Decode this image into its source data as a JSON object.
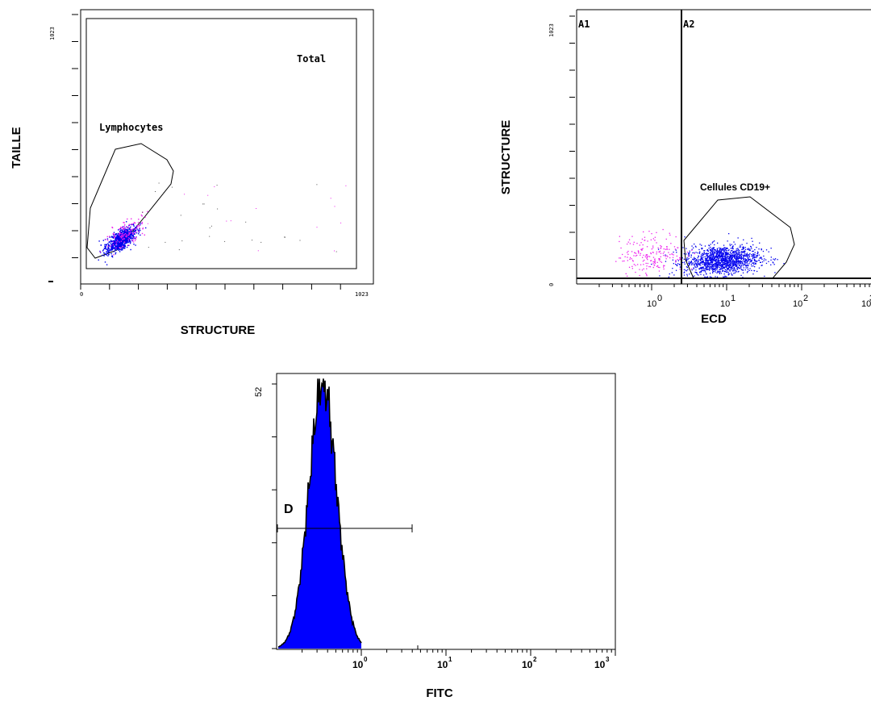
{
  "colors": {
    "gated_blue": "#0000ee",
    "ungated_magenta": "#ee22ee",
    "histogram_fill": "#0000ff",
    "axis_black": "#000000"
  },
  "chart_data": [
    {
      "type": "scatter",
      "id": "plot1",
      "xlabel": "STRUCTURE",
      "ylabel": "TAILLE",
      "x_ticks": [
        "0",
        "1023"
      ],
      "y_ticks": [
        "1023"
      ],
      "xlim": [
        0,
        1023
      ],
      "ylim": [
        0,
        1023
      ],
      "gates": [
        {
          "name": "Total",
          "kind": "rectangle"
        },
        {
          "name": "Lymphocytes",
          "kind": "polygon"
        }
      ],
      "clusters": [
        {
          "name": "Lymphocytes (blue)",
          "center": [
            130,
            120
          ],
          "spread": [
            45,
            40
          ],
          "count": 800,
          "color": "#0000ee"
        },
        {
          "name": "Lymphocytes (magenta)",
          "center": [
            150,
            145
          ],
          "spread": [
            60,
            60
          ],
          "count": 120,
          "color": "#ee22ee"
        }
      ],
      "grid": false
    },
    {
      "type": "scatter",
      "id": "plot2",
      "xlabel": "ECD",
      "ylabel": "STRUCTURE",
      "x_scale": "log",
      "x_ticks": [
        "10^0",
        "10^1",
        "10^2",
        "10^3"
      ],
      "y_ticks": [
        "1023",
        "0"
      ],
      "xlim": [
        0.1,
        1000
      ],
      "ylim": [
        0,
        1023
      ],
      "quadrant_threshold": 2.5,
      "regions": [
        "A1",
        "A2"
      ],
      "gates": [
        {
          "name": "Cellules CD19+",
          "kind": "polygon"
        }
      ],
      "clusters": [
        {
          "name": "CD19+ (blue)",
          "center_log": 0.93,
          "center_y": 70,
          "spread": [
            0.25,
            28
          ],
          "count": 1400,
          "color": "#0000ee"
        },
        {
          "name": "CD19- (magenta)",
          "center_log": 0.0,
          "center_y": 95,
          "spread": [
            0.22,
            40
          ],
          "count": 200,
          "color": "#ee22ee"
        }
      ],
      "grid": false
    },
    {
      "type": "area",
      "id": "plot3",
      "xlabel": "FITC",
      "ylabel": "",
      "x_scale": "log",
      "x_ticks": [
        "10^0",
        "10^1",
        "10^2",
        "10^3"
      ],
      "y_ticks": [
        "52"
      ],
      "xlim": [
        0.1,
        1000
      ],
      "ylim": [
        0,
        52
      ],
      "peak_value": 52,
      "peak_position": 0.35,
      "marker": {
        "name": "D",
        "from": 0.1,
        "to": 4.5
      },
      "grid": false
    }
  ]
}
